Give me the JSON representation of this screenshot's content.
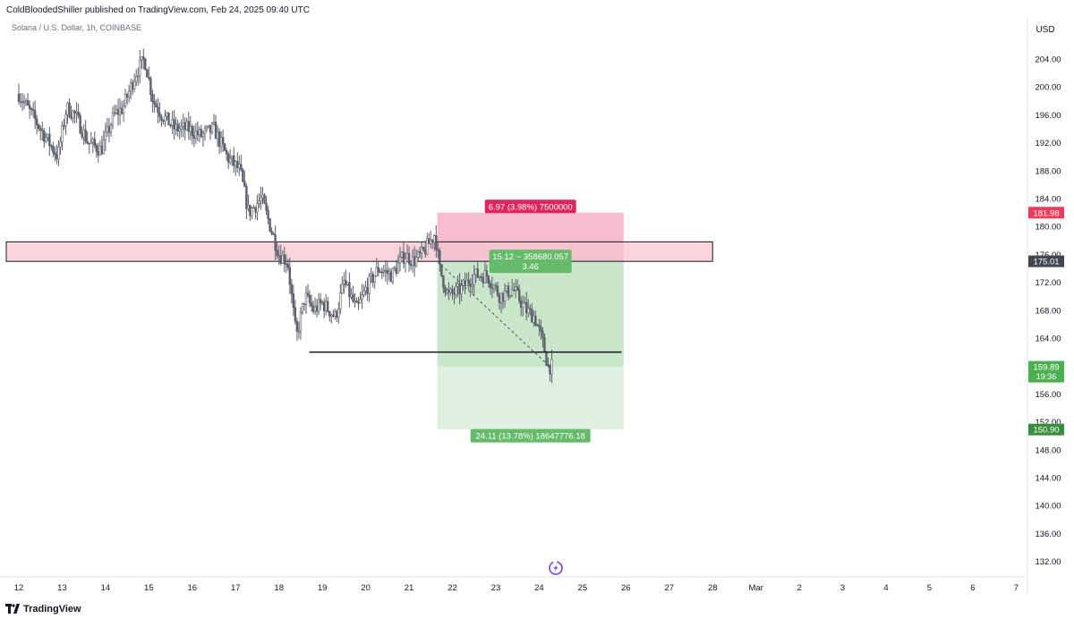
{
  "header": {
    "published_line": "ColdBloodedShiller published on TradingView.com, Feb 24, 2025 09:40 UTC",
    "symbol_line": "Solana / U.S. Dollar, 1h, COINBASE"
  },
  "footer": {
    "brand": "TradingView",
    "logo_icon": "tradingview-logo-icon"
  },
  "chart_data": {
    "type": "candlestick",
    "currency_label": "USD",
    "price_axis_ticks": [
      "204.00",
      "200.00",
      "196.00",
      "192.00",
      "188.00",
      "184.00",
      "180.00",
      "176.00",
      "172.00",
      "168.00",
      "164.00",
      "160.00",
      "156.00",
      "152.00",
      "148.00",
      "144.00",
      "140.00",
      "136.00",
      "132.00"
    ],
    "time_axis_ticks": [
      "12",
      "13",
      "14",
      "15",
      "16",
      "17",
      "18",
      "19",
      "20",
      "21",
      "22",
      "23",
      "24",
      "25",
      "26",
      "27",
      "28",
      "Mar",
      "2",
      "3",
      "4",
      "5",
      "6",
      "7"
    ],
    "ylim": [
      130,
      208
    ],
    "price_path": [
      [
        12.0,
        199
      ],
      [
        12.3,
        196
      ],
      [
        12.6,
        193
      ],
      [
        12.9,
        190
      ],
      [
        13.1,
        197
      ],
      [
        13.3,
        196
      ],
      [
        13.6,
        192
      ],
      [
        13.9,
        191
      ],
      [
        14.2,
        196
      ],
      [
        14.4,
        197
      ],
      [
        14.7,
        202
      ],
      [
        14.9,
        204
      ],
      [
        15.1,
        198
      ],
      [
        15.3,
        196
      ],
      [
        15.6,
        194
      ],
      [
        15.9,
        194
      ],
      [
        16.2,
        193
      ],
      [
        16.5,
        194
      ],
      [
        16.8,
        190
      ],
      [
        17.1,
        188
      ],
      [
        17.3,
        182
      ],
      [
        17.6,
        184
      ],
      [
        17.8,
        180
      ],
      [
        18.0,
        176
      ],
      [
        18.2,
        175
      ],
      [
        18.4,
        164
      ],
      [
        18.6,
        170
      ],
      [
        18.8,
        168
      ],
      [
        19.0,
        169
      ],
      [
        19.3,
        167
      ],
      [
        19.5,
        172
      ],
      [
        19.8,
        168
      ],
      [
        20.0,
        171
      ],
      [
        20.3,
        174
      ],
      [
        20.6,
        173
      ],
      [
        20.9,
        176
      ],
      [
        21.1,
        175
      ],
      [
        21.3,
        176
      ],
      [
        21.5,
        178
      ],
      [
        21.6,
        179
      ],
      [
        21.7,
        174
      ],
      [
        21.9,
        170
      ],
      [
        22.2,
        171
      ],
      [
        22.5,
        173
      ],
      [
        22.8,
        173
      ],
      [
        23.1,
        170
      ],
      [
        23.4,
        171
      ],
      [
        23.7,
        168
      ],
      [
        23.9,
        167
      ],
      [
        24.1,
        163
      ],
      [
        24.2,
        160
      ],
      [
        24.3,
        159.9
      ]
    ],
    "overlays": {
      "resistance_zone": {
        "low": 175.0,
        "high": 177.8,
        "from_x": 12.0,
        "to_x": 28.0
      },
      "support_line": {
        "price": 162.0,
        "from_x": 18.7,
        "to_x": 25.9
      },
      "short_position": {
        "entry_price": 175.01,
        "stop_price": 181.98,
        "target_price": 150.9,
        "from_x": 21.65,
        "to_x": 25.95,
        "stop_label": "6.97 (3.98%) 7500000",
        "ratio_label_line1": "15.12 ~ 358680.057",
        "ratio_label_line2": "3.46",
        "target_label": "24.11 (13.78%) 18647776.18"
      }
    },
    "price_tags": [
      {
        "id": "stop",
        "value": "181.98",
        "price": 181.98,
        "color": "#ef3b5b",
        "sub": ""
      },
      {
        "id": "entry",
        "value": "175.01",
        "price": 175.01,
        "color": "#434651",
        "sub": ""
      },
      {
        "id": "last",
        "value": "159.89",
        "price": 159.89,
        "color": "#4caf50",
        "sub": "19:36"
      },
      {
        "id": "target",
        "value": "150.90",
        "price": 150.9,
        "color": "#3a8f3e",
        "sub": ""
      }
    ],
    "colors": {
      "candle": "#5d606b",
      "resistance_fill": "#f8c6d1",
      "stop_fill": "#f4a7bd",
      "target_fill": "#c8e6c9",
      "stop_label_bg": "#e0245e",
      "target_label_bg": "#66bb6a",
      "axis_text": "#131722",
      "grid": "#e0e3eb"
    },
    "time_axis_marker_icon": "lightning-badge-icon"
  }
}
